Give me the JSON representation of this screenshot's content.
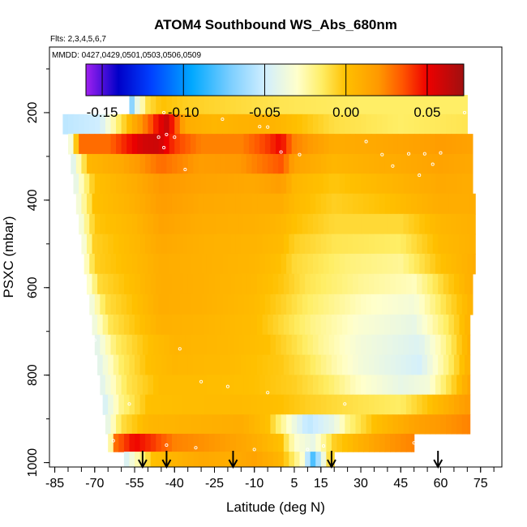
{
  "chart_data": {
    "type": "heatmap",
    "title": "ATOM4 Southbound WS_Abs_680nm",
    "subtitle_flights": "Flts: 2,3,4,5,6,7",
    "subtitle_dates": "MMDD: 0427,0429,0501,0503,0506,0509",
    "xlabel": "Latitude (deg N)",
    "ylabel": "PSXC (mbar)",
    "xlim": [
      -87,
      83
    ],
    "ylim": [
      1010,
      50
    ],
    "x_ticks": [
      -85,
      -70,
      -55,
      -40,
      -25,
      -10,
      5,
      15,
      30,
      45,
      60,
      75
    ],
    "x_tick_labels": [
      "-85",
      "-70",
      "-55",
      "-40",
      "-25",
      "-10",
      "5",
      "15",
      "30",
      "45",
      "60",
      "75"
    ],
    "y_ticks": [
      200,
      400,
      600,
      800,
      1000
    ],
    "y_tick_labels": [
      "200",
      "400",
      "600",
      "800",
      "1000"
    ],
    "colorbar": {
      "range": [
        -0.16,
        0.0725
      ],
      "ticks": [
        -0.15,
        -0.1,
        -0.05,
        0.0,
        0.05
      ],
      "tick_labels": [
        "-0.15",
        "-0.10",
        "-0.05",
        "0.00",
        "0.05"
      ],
      "stops": [
        {
          "v": -0.16,
          "c": "#a020f0"
        },
        {
          "v": -0.14,
          "c": "#0000c8"
        },
        {
          "v": -0.12,
          "c": "#0040ff"
        },
        {
          "v": -0.095,
          "c": "#00a8ff"
        },
        {
          "v": -0.07,
          "c": "#80d0ff"
        },
        {
          "v": -0.05,
          "c": "#d0eeff"
        },
        {
          "v": -0.03,
          "c": "#ffffcc"
        },
        {
          "v": -0.015,
          "c": "#ffee66"
        },
        {
          "v": 0.0,
          "c": "#ffc000"
        },
        {
          "v": 0.02,
          "c": "#ff9900"
        },
        {
          "v": 0.035,
          "c": "#ff5500"
        },
        {
          "v": 0.05,
          "c": "#ee0000"
        },
        {
          "v": 0.0725,
          "c": "#a01010"
        }
      ]
    },
    "layers": [
      {
        "p": 182,
        "x0": -57,
        "x1": 70,
        "pts": [
          [
            -57,
            -0.08
          ],
          [
            -54,
            -0.04
          ],
          [
            -50,
            -0.01
          ],
          [
            -45,
            0.0
          ],
          [
            -35,
            -0.005
          ],
          [
            -20,
            -0.008
          ],
          [
            0,
            -0.012
          ],
          [
            30,
            -0.015
          ],
          [
            70,
            -0.015
          ]
        ]
      },
      {
        "p": 225,
        "x0": -82,
        "x1": 70,
        "pts": [
          [
            -82,
            -0.055
          ],
          [
            -68,
            -0.05
          ],
          [
            -62,
            -0.02
          ],
          [
            -55,
            0.012
          ],
          [
            -50,
            0.03
          ],
          [
            -46,
            0.05
          ],
          [
            -43,
            0.06
          ],
          [
            -40,
            0.04
          ],
          [
            -36,
            0.01
          ],
          [
            -25,
            0.005
          ],
          [
            -10,
            0.008
          ],
          [
            0,
            0.005
          ],
          [
            20,
            -0.01
          ],
          [
            45,
            -0.015
          ],
          [
            70,
            -0.012
          ]
        ]
      },
      {
        "p": 272,
        "x0": -80,
        "x1": 72,
        "pts": [
          [
            -80,
            -0.05
          ],
          [
            -75,
            0.03
          ],
          [
            -65,
            0.03
          ],
          [
            -58,
            0.045
          ],
          [
            -52,
            0.058
          ],
          [
            -46,
            0.06
          ],
          [
            -40,
            0.04
          ],
          [
            -30,
            0.025
          ],
          [
            -15,
            0.025
          ],
          [
            -5,
            0.04
          ],
          [
            0,
            0.05
          ],
          [
            5,
            0.025
          ],
          [
            20,
            0.01
          ],
          [
            35,
            0.012
          ],
          [
            50,
            0.015
          ],
          [
            60,
            0.018
          ],
          [
            72,
            0.015
          ]
        ]
      },
      {
        "p": 317,
        "x0": -79,
        "x1": 72,
        "pts": [
          [
            -79,
            -0.05
          ],
          [
            -72,
            0.005
          ],
          [
            -60,
            0.012
          ],
          [
            -45,
            0.03
          ],
          [
            -30,
            0.018
          ],
          [
            -15,
            0.02
          ],
          [
            -5,
            0.03
          ],
          [
            0,
            0.035
          ],
          [
            5,
            0.015
          ],
          [
            20,
            0.005
          ],
          [
            40,
            0.01
          ],
          [
            60,
            0.015
          ],
          [
            72,
            0.012
          ]
        ]
      },
      {
        "p": 362,
        "x0": -78,
        "x1": 72,
        "pts": [
          [
            -78,
            -0.045
          ],
          [
            -70,
            0.0
          ],
          [
            -55,
            0.01
          ],
          [
            -45,
            0.02
          ],
          [
            -30,
            0.015
          ],
          [
            -10,
            0.012
          ],
          [
            0,
            0.018
          ],
          [
            5,
            0.005
          ],
          [
            20,
            -0.002
          ],
          [
            40,
            0.005
          ],
          [
            60,
            0.012
          ],
          [
            72,
            0.01
          ]
        ]
      },
      {
        "p": 408,
        "x0": -77,
        "x1": 73,
        "pts": [
          [
            -77,
            -0.04
          ],
          [
            -70,
            0.0
          ],
          [
            -55,
            0.008
          ],
          [
            -45,
            0.018
          ],
          [
            -30,
            0.012
          ],
          [
            -10,
            0.01
          ],
          [
            0,
            0.01
          ],
          [
            5,
            0.003
          ],
          [
            20,
            -0.005
          ],
          [
            40,
            0.0
          ],
          [
            60,
            0.01
          ],
          [
            73,
            0.01
          ]
        ]
      },
      {
        "p": 455,
        "x0": -76,
        "x1": 73,
        "pts": [
          [
            -76,
            -0.04
          ],
          [
            -70,
            -0.002
          ],
          [
            -55,
            0.005
          ],
          [
            -45,
            0.015
          ],
          [
            -30,
            0.01
          ],
          [
            -10,
            0.008
          ],
          [
            0,
            0.005
          ],
          [
            5,
            0.0
          ],
          [
            20,
            -0.008
          ],
          [
            45,
            -0.008
          ],
          [
            60,
            0.005
          ],
          [
            73,
            0.008
          ]
        ]
      },
      {
        "p": 500,
        "x0": -75,
        "x1": 73,
        "pts": [
          [
            -75,
            -0.04
          ],
          [
            -70,
            -0.005
          ],
          [
            -55,
            0.004
          ],
          [
            -45,
            0.012
          ],
          [
            -30,
            0.008
          ],
          [
            -10,
            0.006
          ],
          [
            0,
            0.003
          ],
          [
            5,
            -0.005
          ],
          [
            20,
            -0.012
          ],
          [
            45,
            -0.015
          ],
          [
            60,
            0.003
          ],
          [
            73,
            0.008
          ]
        ]
      },
      {
        "p": 545,
        "x0": -74,
        "x1": 73,
        "pts": [
          [
            -74,
            -0.035
          ],
          [
            -70,
            -0.005
          ],
          [
            -55,
            0.003
          ],
          [
            -45,
            0.01
          ],
          [
            -30,
            0.008
          ],
          [
            -10,
            0.005
          ],
          [
            0,
            0.0
          ],
          [
            5,
            -0.008
          ],
          [
            25,
            -0.018
          ],
          [
            45,
            -0.022
          ],
          [
            60,
            0.0
          ],
          [
            73,
            0.01
          ]
        ]
      },
      {
        "p": 592,
        "x0": -73,
        "x1": 72,
        "pts": [
          [
            -73,
            -0.035
          ],
          [
            -68,
            -0.008
          ],
          [
            -55,
            0.002
          ],
          [
            -45,
            0.01
          ],
          [
            -30,
            0.008
          ],
          [
            -10,
            0.004
          ],
          [
            0,
            -0.002
          ],
          [
            10,
            -0.012
          ],
          [
            30,
            -0.022
          ],
          [
            50,
            -0.028
          ],
          [
            62,
            -0.005
          ],
          [
            72,
            0.01
          ]
        ]
      },
      {
        "p": 638,
        "x0": -72,
        "x1": 72,
        "pts": [
          [
            -72,
            -0.04
          ],
          [
            -66,
            -0.01
          ],
          [
            -55,
            0.0
          ],
          [
            -45,
            0.01
          ],
          [
            -30,
            0.008
          ],
          [
            -10,
            0.003
          ],
          [
            0,
            -0.005
          ],
          [
            10,
            -0.015
          ],
          [
            30,
            -0.028
          ],
          [
            50,
            -0.035
          ],
          [
            62,
            -0.01
          ],
          [
            72,
            0.008
          ]
        ]
      },
      {
        "p": 685,
        "x0": -71,
        "x1": 71,
        "pts": [
          [
            -71,
            -0.04
          ],
          [
            -64,
            -0.012
          ],
          [
            -55,
            -0.002
          ],
          [
            -45,
            0.008
          ],
          [
            -30,
            0.006
          ],
          [
            -10,
            0.002
          ],
          [
            0,
            -0.008
          ],
          [
            12,
            -0.02
          ],
          [
            30,
            -0.032
          ],
          [
            50,
            -0.04
          ],
          [
            62,
            -0.015
          ],
          [
            71,
            0.008
          ]
        ]
      },
      {
        "p": 730,
        "x0": -70,
        "x1": 71,
        "pts": [
          [
            -70,
            -0.045
          ],
          [
            -62,
            -0.015
          ],
          [
            -50,
            0.0
          ],
          [
            -40,
            0.006
          ],
          [
            -20,
            0.004
          ],
          [
            -5,
            0.0
          ],
          [
            5,
            -0.01
          ],
          [
            15,
            -0.022
          ],
          [
            30,
            -0.035
          ],
          [
            52,
            -0.045
          ],
          [
            62,
            -0.02
          ],
          [
            71,
            0.01
          ]
        ]
      },
      {
        "p": 777,
        "x0": -69,
        "x1": 71,
        "pts": [
          [
            -69,
            -0.045
          ],
          [
            -60,
            -0.015
          ],
          [
            -50,
            0.0
          ],
          [
            -40,
            0.005
          ],
          [
            -20,
            0.003
          ],
          [
            0,
            -0.003
          ],
          [
            10,
            -0.012
          ],
          [
            20,
            -0.025
          ],
          [
            30,
            -0.035
          ],
          [
            52,
            -0.048
          ],
          [
            62,
            -0.02
          ],
          [
            71,
            0.01
          ]
        ]
      },
      {
        "p": 822,
        "x0": -68,
        "x1": 71,
        "pts": [
          [
            -68,
            -0.045
          ],
          [
            -58,
            -0.012
          ],
          [
            -45,
            0.002
          ],
          [
            -30,
            0.002
          ],
          [
            -10,
            0.0
          ],
          [
            5,
            -0.005
          ],
          [
            18,
            -0.015
          ],
          [
            28,
            -0.028
          ],
          [
            45,
            -0.04
          ],
          [
            55,
            -0.035
          ],
          [
            65,
            -0.005
          ],
          [
            71,
            0.015
          ]
        ]
      },
      {
        "p": 867,
        "x0": -67,
        "x1": 71,
        "pts": [
          [
            -67,
            -0.05
          ],
          [
            -60,
            -0.02
          ],
          [
            -50,
            0.0
          ],
          [
            -35,
            0.002
          ],
          [
            -15,
            0.003
          ],
          [
            0,
            0.0
          ],
          [
            10,
            -0.005
          ],
          [
            25,
            -0.01
          ],
          [
            45,
            -0.015
          ],
          [
            60,
            0.005
          ],
          [
            71,
            0.02
          ]
        ]
      },
      {
        "p": 913,
        "x0": -66,
        "x1": 71,
        "pts": [
          [
            -66,
            -0.045
          ],
          [
            -60,
            -0.01
          ],
          [
            -50,
            0.005
          ],
          [
            -30,
            0.008
          ],
          [
            -15,
            0.01
          ],
          [
            -5,
            0.0
          ],
          [
            0,
            -0.02
          ],
          [
            10,
            -0.055
          ],
          [
            20,
            -0.04
          ],
          [
            25,
            -0.02
          ],
          [
            35,
            0.0
          ],
          [
            50,
            0.015
          ],
          [
            60,
            0.02
          ],
          [
            71,
            0.025
          ]
        ]
      },
      {
        "p": 955,
        "x0": -65,
        "x1": 50,
        "pts": [
          [
            -65,
            -0.05
          ],
          [
            -62,
            0.03
          ],
          [
            -55,
            0.05
          ],
          [
            -48,
            0.04
          ],
          [
            -40,
            0.025
          ],
          [
            -25,
            0.02
          ],
          [
            -10,
            0.01
          ],
          [
            0,
            0.0
          ],
          [
            5,
            -0.03
          ],
          [
            12,
            -0.04
          ],
          [
            20,
            -0.005
          ],
          [
            30,
            0.008
          ],
          [
            40,
            0.02
          ],
          [
            50,
            0.025
          ]
        ]
      },
      {
        "p": 995,
        "x0": -59,
        "x1": 20,
        "pts": [
          [
            -59,
            -0.05
          ],
          [
            -55,
            -0.03
          ],
          [
            -48,
            0.0
          ],
          [
            -42,
            0.005
          ],
          [
            -30,
            0.012
          ],
          [
            -20,
            0.01
          ],
          [
            -10,
            0.015
          ],
          [
            0,
            0.005
          ],
          [
            8,
            -0.03
          ],
          [
            12,
            -0.08
          ],
          [
            15,
            -0.05
          ],
          [
            18,
            -0.01
          ],
          [
            20,
            -0.005
          ]
        ]
      }
    ],
    "sample_points": [
      [
        -44,
        200
      ],
      [
        -22,
        215
      ],
      [
        -8,
        232
      ],
      [
        -5,
        233
      ],
      [
        -43,
        250
      ],
      [
        -46,
        256
      ],
      [
        -40,
        256
      ],
      [
        -44,
        280
      ],
      [
        0,
        290
      ],
      [
        7,
        296
      ],
      [
        32,
        266
      ],
      [
        38,
        296
      ],
      [
        48,
        294
      ],
      [
        54,
        294
      ],
      [
        60,
        292
      ],
      [
        42,
        322
      ],
      [
        57,
        318
      ],
      [
        52,
        343
      ],
      [
        -36,
        330
      ],
      [
        -70,
        720
      ],
      [
        -38,
        740
      ],
      [
        -30,
        815
      ],
      [
        -20,
        826
      ],
      [
        -5,
        840
      ],
      [
        -57,
        866
      ],
      [
        24,
        866
      ],
      [
        72,
        878
      ],
      [
        -63,
        950
      ],
      [
        -43,
        960
      ],
      [
        -32,
        966
      ],
      [
        -10,
        970
      ],
      [
        10,
        970
      ],
      [
        16,
        962
      ],
      [
        50,
        955
      ],
      [
        69,
        200
      ]
    ],
    "arrow_lats": [
      -52,
      -43,
      -18,
      19,
      59
    ]
  }
}
